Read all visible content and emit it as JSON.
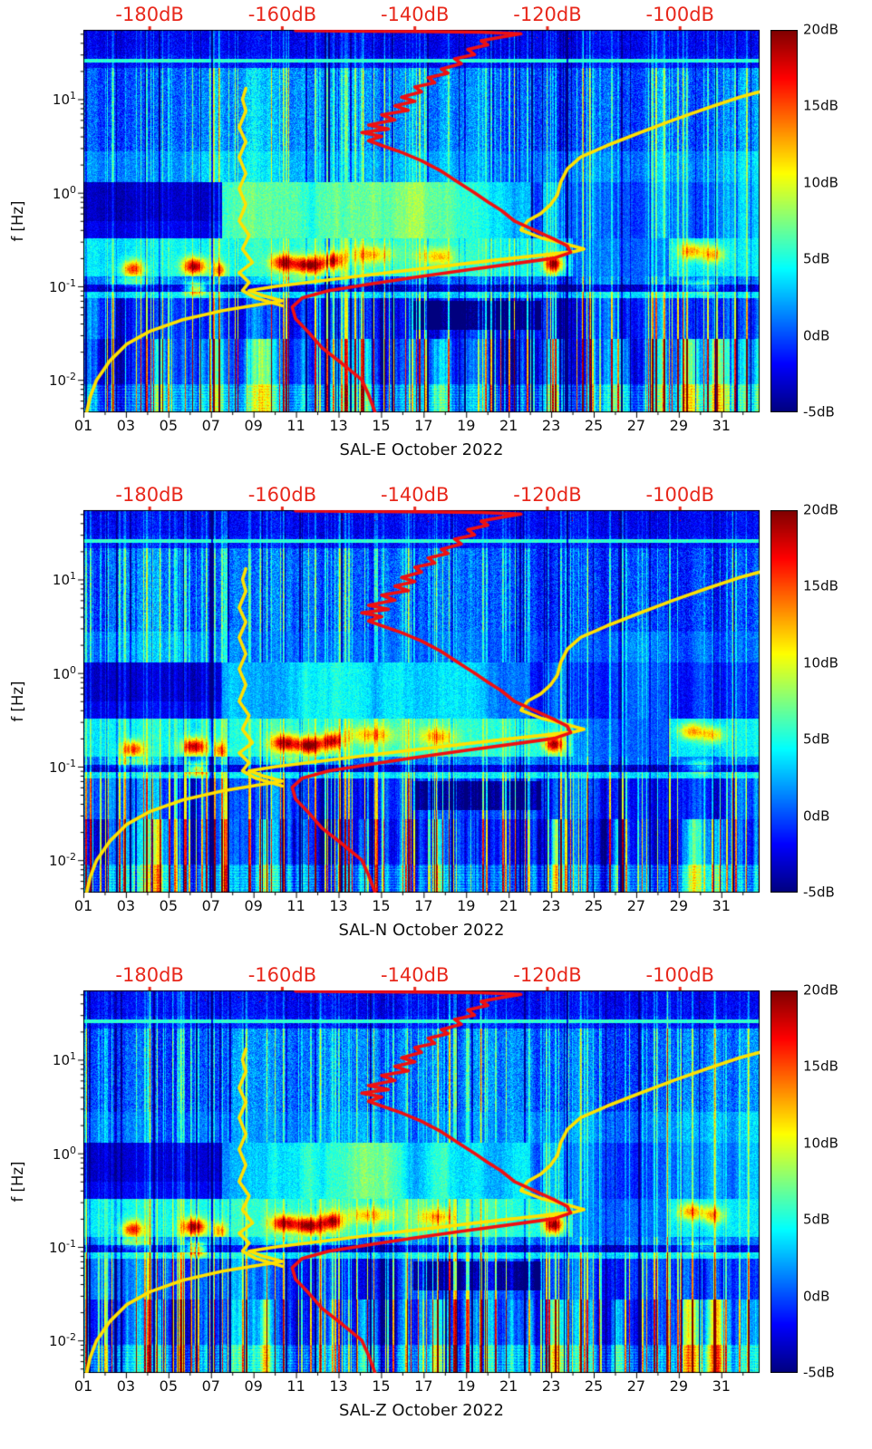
{
  "chart_data": {
    "type": "heatmap",
    "panels": [
      {
        "title": "SAL-E October 2022"
      },
      {
        "title": "SAL-N October 2022"
      },
      {
        "title": "SAL-Z October 2022"
      }
    ],
    "x_axis": {
      "tick_labels": [
        "01",
        "03",
        "05",
        "07",
        "09",
        "11",
        "13",
        "15",
        "17",
        "19",
        "21",
        "23",
        "25",
        "27",
        "29",
        "31"
      ],
      "tick_days": [
        1,
        3,
        5,
        7,
        9,
        11,
        13,
        15,
        17,
        19,
        21,
        23,
        25,
        27,
        29,
        31
      ],
      "day_span": [
        1,
        32.8
      ]
    },
    "y_axis": {
      "label": "f [Hz]",
      "scale": "log",
      "range_hz": [
        0.0045,
        55
      ],
      "ticks": [
        {
          "f": 10,
          "base": "10",
          "exp": "1"
        },
        {
          "f": 1,
          "base": "10",
          "exp": "0"
        },
        {
          "f": 0.1,
          "base": "10",
          "exp": "-1"
        },
        {
          "f": 0.01,
          "base": "10",
          "exp": "-2"
        }
      ]
    },
    "top_axis": {
      "color": "#e8271b",
      "range_db": [
        -190,
        -88
      ],
      "ticks": [
        {
          "db": -180,
          "label": "-180dB"
        },
        {
          "db": -160,
          "label": "-160dB"
        },
        {
          "db": -140,
          "label": "-140dB"
        },
        {
          "db": -120,
          "label": "-120dB"
        },
        {
          "db": -100,
          "label": "-100dB"
        }
      ]
    },
    "colorbar": {
      "colormap": "jet",
      "range_db": [
        -5,
        20
      ],
      "ticks": [
        {
          "v": 20,
          "label": "20dB"
        },
        {
          "v": 15,
          "label": "15dB"
        },
        {
          "v": 10,
          "label": "10dB"
        },
        {
          "v": 5,
          "label": "5dB"
        },
        {
          "v": 0,
          "label": "0dB"
        },
        {
          "v": -5,
          "label": "-5dB"
        }
      ]
    },
    "curves": {
      "yellow_color": "#ffe100",
      "red_color": "#f01010",
      "yellow_main": [
        [
          -189.5,
          0.0045
        ],
        [
          -189,
          0.0065
        ],
        [
          -188,
          0.01
        ],
        [
          -186,
          0.016
        ],
        [
          -183.5,
          0.024
        ],
        [
          -180,
          0.033
        ],
        [
          -175,
          0.044
        ],
        [
          -169,
          0.055
        ],
        [
          -164,
          0.063
        ],
        [
          -160,
          0.07
        ],
        [
          -163,
          0.08
        ],
        [
          -165,
          0.09
        ],
        [
          -161,
          0.1
        ],
        [
          -154,
          0.115
        ],
        [
          -146,
          0.135
        ],
        [
          -137,
          0.16
        ],
        [
          -128,
          0.19
        ],
        [
          -121,
          0.215
        ],
        [
          -116,
          0.235
        ],
        [
          -114.5,
          0.25
        ],
        [
          -117,
          0.28
        ],
        [
          -121,
          0.33
        ],
        [
          -124,
          0.4
        ],
        [
          -123,
          0.5
        ],
        [
          -121,
          0.6
        ],
        [
          -119.5,
          0.75
        ],
        [
          -118.5,
          0.95
        ],
        [
          -118,
          1.3
        ],
        [
          -117,
          1.8
        ],
        [
          -115,
          2.4
        ],
        [
          -111,
          3.2
        ],
        [
          -106,
          4.4
        ],
        [
          -101,
          6
        ],
        [
          -96,
          8
        ],
        [
          -91,
          10.5
        ],
        [
          -88,
          12
        ]
      ],
      "yellow_branch": [
        [
          -160,
          0.062
        ],
        [
          -164,
          0.075
        ],
        [
          -166,
          0.09
        ],
        [
          -165,
          0.11
        ],
        [
          -166.5,
          0.14
        ],
        [
          -164.5,
          0.18
        ],
        [
          -166,
          0.25
        ],
        [
          -165,
          0.35
        ],
        [
          -166.5,
          0.5
        ],
        [
          -165.5,
          0.75
        ],
        [
          -166.5,
          1.1
        ],
        [
          -165.5,
          1.6
        ],
        [
          -166.5,
          2.4
        ],
        [
          -165.5,
          3.5
        ],
        [
          -166.5,
          5
        ],
        [
          -165.5,
          7.5
        ],
        [
          -166,
          10
        ],
        [
          -165.5,
          13
        ]
      ],
      "red_main": [
        [
          -146,
          0.0045
        ],
        [
          -147,
          0.007
        ],
        [
          -148,
          0.01
        ],
        [
          -151,
          0.015
        ],
        [
          -154,
          0.022
        ],
        [
          -156,
          0.032
        ],
        [
          -158,
          0.045
        ],
        [
          -158.5,
          0.06
        ],
        [
          -157,
          0.075
        ],
        [
          -153,
          0.09
        ],
        [
          -147,
          0.105
        ],
        [
          -140,
          0.125
        ],
        [
          -132,
          0.15
        ],
        [
          -125,
          0.175
        ],
        [
          -119,
          0.2
        ],
        [
          -116.5,
          0.23
        ],
        [
          -117,
          0.27
        ],
        [
          -119,
          0.32
        ],
        [
          -122,
          0.4
        ],
        [
          -125,
          0.5
        ],
        [
          -127,
          0.65
        ],
        [
          -129,
          0.8
        ],
        [
          -131,
          1.0
        ],
        [
          -133.5,
          1.3
        ],
        [
          -136,
          1.7
        ],
        [
          -139,
          2.2
        ],
        [
          -142,
          2.7
        ],
        [
          -145,
          3.2
        ],
        [
          -147,
          3.6
        ],
        [
          -145,
          4.0
        ],
        [
          -148,
          4.4
        ],
        [
          -144,
          4.8
        ],
        [
          -147,
          5.3
        ],
        [
          -143,
          6.0
        ],
        [
          -145,
          6.8
        ],
        [
          -141,
          7.6
        ],
        [
          -143,
          8.5
        ],
        [
          -140,
          9.5
        ],
        [
          -142,
          10.5
        ],
        [
          -139,
          12
        ],
        [
          -140,
          13.5
        ],
        [
          -137,
          15
        ],
        [
          -138,
          17
        ],
        [
          -135,
          19
        ],
        [
          -136,
          21
        ],
        [
          -133,
          24
        ],
        [
          -134,
          27
        ],
        [
          -131,
          30
        ],
        [
          -132,
          34
        ],
        [
          -129,
          38
        ],
        [
          -130,
          42
        ],
        [
          -127,
          46
        ],
        [
          -124,
          50
        ],
        [
          -130,
          52
        ],
        [
          -140,
          53
        ],
        [
          -150,
          53.5
        ],
        [
          -158,
          54
        ]
      ]
    },
    "spectrogram_features": {
      "background_db": 0,
      "value_range_db": [
        -5,
        20
      ],
      "hf_dark_band_min_hz": 30,
      "cyan_line_hz": 26,
      "microseism_band_hz": [
        0.13,
        0.33
      ],
      "microseism_hotspots": [
        [
          3.3,
          0.5,
          0.155,
          12
        ],
        [
          6.2,
          0.55,
          0.165,
          15
        ],
        [
          7.4,
          0.3,
          0.15,
          9
        ],
        [
          10.4,
          0.6,
          0.18,
          13
        ],
        [
          11.6,
          0.7,
          0.17,
          15
        ],
        [
          12.7,
          0.5,
          0.19,
          12
        ],
        [
          14.5,
          1.0,
          0.22,
          7
        ],
        [
          17.6,
          0.8,
          0.21,
          7
        ],
        [
          23.1,
          0.45,
          0.175,
          15
        ],
        [
          29.6,
          0.6,
          0.24,
          9
        ],
        [
          30.6,
          0.5,
          0.22,
          8
        ]
      ],
      "secondary_hotspots": [
        [
          6.3,
          0.5,
          0.095,
          13
        ],
        [
          3.2,
          1.0,
          0.115,
          6
        ],
        [
          11.0,
          1.5,
          0.125,
          7
        ],
        [
          30.0,
          0.8,
          0.1,
          6
        ]
      ],
      "quiet_block_days": [
        16.5,
        22.5
      ],
      "quiet_block_hz": [
        0.035,
        0.07
      ],
      "left_quiet_day_max": 7.5,
      "bright_low_columns": [
        [
          4.5,
          0.3,
          5
        ],
        [
          9.5,
          0.3,
          5
        ],
        [
          14.2,
          0.3,
          4
        ],
        [
          17.6,
          0.3,
          5
        ],
        [
          23.2,
          0.35,
          9
        ],
        [
          26.2,
          0.3,
          6
        ],
        [
          29.6,
          0.5,
          8
        ],
        [
          30.8,
          0.4,
          9
        ]
      ],
      "dark_line_days": [
        7.05,
        23.75
      ],
      "panel_seeds": [
        101,
        202,
        303
      ]
    }
  }
}
